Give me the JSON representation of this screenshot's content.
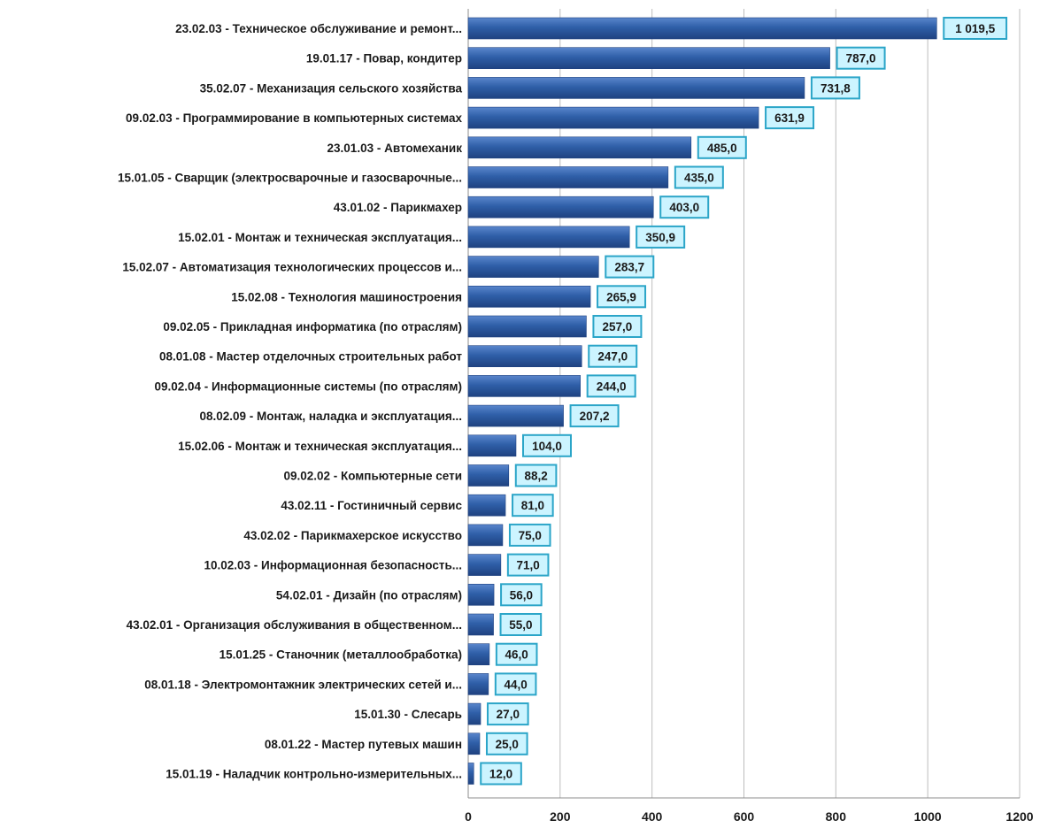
{
  "chart_data": {
    "type": "bar",
    "orientation": "horizontal",
    "categories": [
      "23.02.03 - Техническое обслуживание и ремонт...",
      "19.01.17 - Повар, кондитер",
      "35.02.07 - Механизация сельского хозяйства",
      "09.02.03 - Программирование в компьютерных системах",
      "23.01.03 - Автомеханик",
      "15.01.05 - Сварщик (электросварочные и газосварочные...",
      "43.01.02 - Парикмахер",
      "15.02.01 - Монтаж и техническая эксплуатация...",
      "15.02.07 - Автоматизация технологических процессов и...",
      "15.02.08 - Технология машиностроения",
      "09.02.05 - Прикладная информатика (по отраслям)",
      "08.01.08 - Мастер отделочных строительных работ",
      "09.02.04 - Информационные системы (по отраслям)",
      "08.02.09 - Монтаж, наладка и эксплуатация...",
      "15.02.06 - Монтаж и техническая эксплуатация...",
      "09.02.02 - Компьютерные сети",
      "43.02.11 - Гостиничный сервис",
      "43.02.02 - Парикмахерское искусство",
      "10.02.03 - Информационная безопасность...",
      "54.02.01 - Дизайн (по отраслям)",
      "43.02.01 - Организация обслуживания в общественном...",
      "15.01.25 - Станочник (металлообработка)",
      "08.01.18 - Электромонтажник электрических сетей и...",
      "15.01.30 - Слесарь",
      "08.01.22 - Мастер путевых машин",
      "15.01.19 - Наладчик контрольно-измерительных..."
    ],
    "values": [
      1019.5,
      787.0,
      731.8,
      631.9,
      485.0,
      435.0,
      403.0,
      350.9,
      283.7,
      265.9,
      257.0,
      247.0,
      244.0,
      207.2,
      104.0,
      88.2,
      81.0,
      75.0,
      71.0,
      56.0,
      55.0,
      46.0,
      44.0,
      27.0,
      25.0,
      12.0
    ],
    "value_labels": [
      "1 019,5",
      "787,0",
      "731,8",
      "631,9",
      "485,0",
      "435,0",
      "403,0",
      "350,9",
      "283,7",
      "265,9",
      "257,0",
      "247,0",
      "244,0",
      "207,2",
      "104,0",
      "88,2",
      "81,0",
      "75,0",
      "71,0",
      "56,0",
      "55,0",
      "46,0",
      "44,0",
      "27,0",
      "25,0",
      "12,0"
    ],
    "xlim": [
      0,
      1200
    ],
    "xticks": [
      "0",
      "200",
      "400",
      "600",
      "800",
      "1000",
      "1200"
    ],
    "grid": "vertical",
    "legend": "none",
    "title": "",
    "xlabel": "",
    "ylabel": "",
    "colors": {
      "bar": "#2f5fa8",
      "bar_highlight": "#5a86cc",
      "bar_edge": "#1f4280",
      "label_fill": "#ccf4ff",
      "label_border": "#2ba5c8",
      "grid": "#bdbdbd",
      "axis": "#8c8c8c"
    }
  }
}
